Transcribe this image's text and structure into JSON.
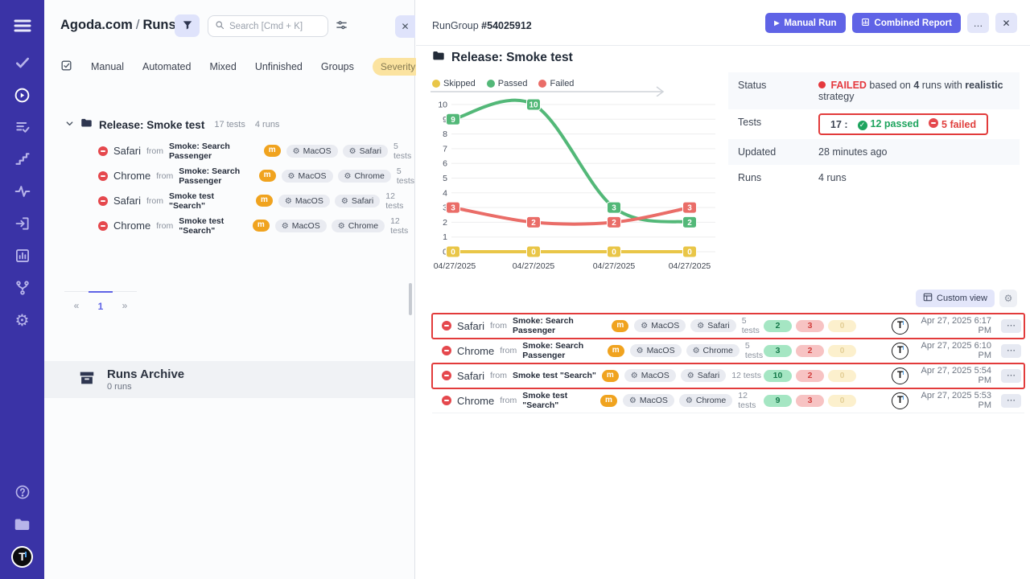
{
  "colors": {
    "accent": "#5f63e6",
    "sidebar_bg": "#3a33a6",
    "annotation_red": "#e23b3b",
    "passed": "#53b878",
    "failed": "#ea6d68",
    "skipped": "#e9c648"
  },
  "sidebar": {
    "items": [
      "menu",
      "tests",
      "runs",
      "suites",
      "steps",
      "pulse",
      "import",
      "reports",
      "branches",
      "settings",
      "help",
      "projects",
      "logo"
    ],
    "active_item": "runs"
  },
  "left_panel": {
    "breadcrumb": {
      "project": "Agoda.com",
      "separator": "/",
      "page": "Runs"
    },
    "search": {
      "placeholder": "Search [Cmd + K]"
    },
    "close_label": "✕",
    "tabs": [
      "Manual",
      "Automated",
      "Mixed",
      "Unfinished",
      "Groups"
    ],
    "severity_tab": "Severity",
    "tree": {
      "group": {
        "label": "Release: Smoke test",
        "tests": "17 tests",
        "runs": "4 runs"
      },
      "from_word": "from",
      "runs": [
        {
          "browser": "Safari",
          "source": "Smoke: Search Passenger",
          "badge": "m",
          "env": [
            "MacOS",
            "Safari"
          ],
          "tests": "5 tests"
        },
        {
          "browser": "Chrome",
          "source": "Smoke: Search Passenger",
          "badge": "m",
          "env": [
            "MacOS",
            "Chrome"
          ],
          "tests": "5 tests"
        },
        {
          "browser": "Safari",
          "source": "Smoke test \"Search\"",
          "badge": "m",
          "env": [
            "MacOS",
            "Safari"
          ],
          "tests": "12 tests"
        },
        {
          "browser": "Chrome",
          "source": "Smoke test \"Search\"",
          "badge": "m",
          "env": [
            "MacOS",
            "Chrome"
          ],
          "tests": "12 tests"
        }
      ]
    },
    "pagination": {
      "prev": "«",
      "page": "1",
      "next": "»"
    },
    "archive": {
      "title": "Runs Archive",
      "count": "0 runs"
    }
  },
  "run_group": {
    "header": {
      "label": "RunGroup",
      "id": "#54025912",
      "manual_run": "Manual Run",
      "combined_report": "Combined Report",
      "more": "…",
      "close": "✕"
    },
    "title": "Release: Smoke test",
    "summary": {
      "status_label": "Status",
      "status_value": "FAILED",
      "status_t1": "based on",
      "status_runs": "4",
      "status_t2": "runs with",
      "status_strategy": "realistic",
      "status_t3": "strategy",
      "tests_label": "Tests",
      "tests_total": "17 :",
      "tests_passed": "12 passed",
      "tests_failed": "5 failed",
      "updated_label": "Updated",
      "updated_value": "28 minutes ago",
      "runs_label": "Runs",
      "runs_value": "4 runs"
    },
    "custom_view": "Custom view",
    "rows": [
      {
        "browser": "Safari",
        "source": "Smoke: Search Passenger",
        "badge": "m",
        "env": [
          "MacOS",
          "Safari"
        ],
        "tests": "5 tests",
        "passed": "2",
        "failed": "3",
        "skipped": "0",
        "date": "Apr 27, 2025 6:17 PM",
        "highlighted": true
      },
      {
        "browser": "Chrome",
        "source": "Smoke: Search Passenger",
        "badge": "m",
        "env": [
          "MacOS",
          "Chrome"
        ],
        "tests": "5 tests",
        "passed": "3",
        "failed": "2",
        "skipped": "0",
        "date": "Apr 27, 2025 6:10 PM",
        "highlighted": false
      },
      {
        "browser": "Safari",
        "source": "Smoke test \"Search\"",
        "badge": "m",
        "env": [
          "MacOS",
          "Safari"
        ],
        "tests": "12 tests",
        "passed": "10",
        "failed": "2",
        "skipped": "0",
        "date": "Apr 27, 2025 5:54 PM",
        "highlighted": true
      },
      {
        "browser": "Chrome",
        "source": "Smoke test \"Search\"",
        "badge": "m",
        "env": [
          "MacOS",
          "Chrome"
        ],
        "tests": "12 tests",
        "passed": "9",
        "failed": "3",
        "skipped": "0",
        "date": "Apr 27, 2025 5:53 PM",
        "highlighted": false
      }
    ]
  },
  "chart_data": {
    "type": "line",
    "x": [
      "04/27/2025",
      "04/27/2025",
      "04/27/2025",
      "04/27/2025"
    ],
    "series": [
      {
        "name": "Skipped",
        "color": "#e9c648",
        "values": [
          0,
          0,
          0,
          0
        ]
      },
      {
        "name": "Passed",
        "color": "#53b878",
        "values": [
          9,
          10,
          3,
          2
        ]
      },
      {
        "name": "Failed",
        "color": "#ea6d68",
        "values": [
          3,
          2,
          2,
          3
        ]
      }
    ],
    "ylim": [
      0,
      10
    ],
    "ytick_step": 1,
    "grid": true,
    "legend_position": "top",
    "point_labels": true
  }
}
